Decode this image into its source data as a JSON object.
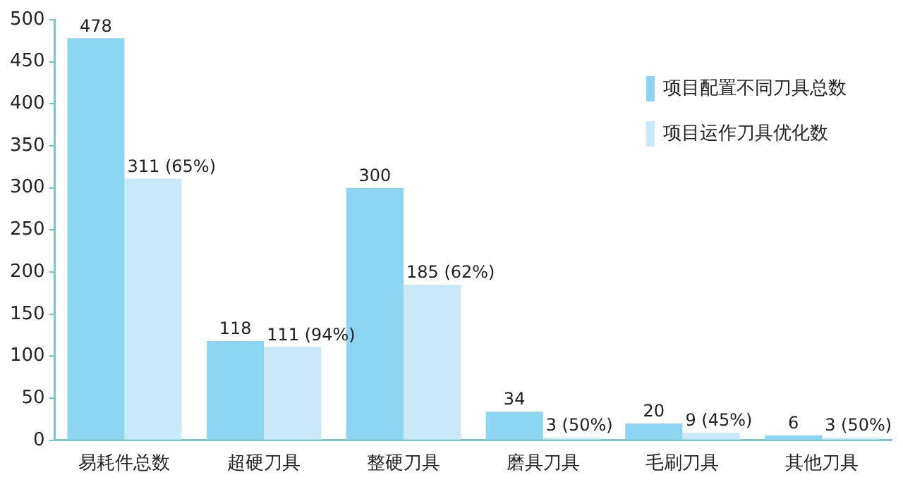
{
  "chart_data": {
    "type": "bar",
    "categories": [
      "易耗件总数",
      "超硬刀具",
      "整硬刀具",
      "磨具刀具",
      "毛刷刀具",
      "其他刀具"
    ],
    "series": [
      {
        "name": "项目配置不同刀具总数",
        "color": "#8dd6f3",
        "values": [
          478,
          118,
          300,
          34,
          20,
          6
        ],
        "value_labels": [
          "478",
          "118",
          "300",
          "34",
          "20",
          "6"
        ]
      },
      {
        "name": "项目运作刀具优化数",
        "color": "#c9e9f8",
        "values": [
          311,
          111,
          185,
          3,
          9,
          3
        ],
        "value_labels": [
          "311 (65%)",
          "111 (94%)",
          "185 (62%)",
          "3 (50%)",
          "9 (45%)",
          "3 (50%)"
        ]
      }
    ],
    "ylim": [
      0,
      500
    ],
    "yticks": [
      0,
      50,
      100,
      150,
      200,
      250,
      300,
      350,
      400,
      450,
      500
    ],
    "grid": false,
    "legend": "top right"
  }
}
